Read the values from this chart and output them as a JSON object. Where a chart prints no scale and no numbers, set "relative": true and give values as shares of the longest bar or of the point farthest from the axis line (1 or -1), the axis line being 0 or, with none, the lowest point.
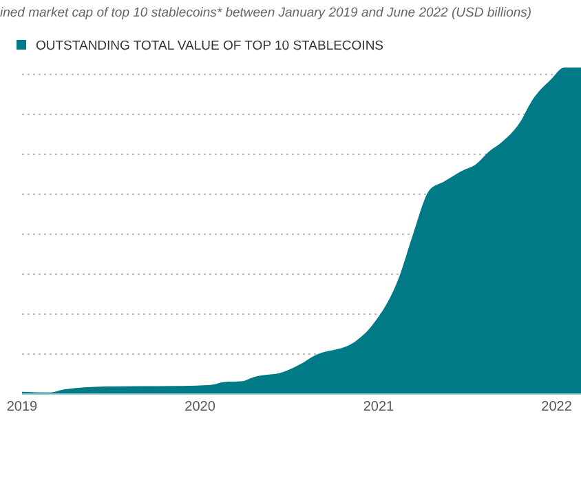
{
  "chart_data": {
    "type": "area",
    "title": "ined market cap of top 10 stablecoins* between January 2019 and June 2022 (USD billions)",
    "x": [
      "2019-01-01",
      "2019-03-01",
      "2019-03-28",
      "2019-06-20",
      "2019-11-25",
      "2020-01-22",
      "2020-02-20",
      "2020-03-25",
      "2020-04-22",
      "2020-06-18",
      "2020-07-30",
      "2020-08-18",
      "2020-11-13",
      "2020-12-18",
      "2021-02-13",
      "2021-03-13",
      "2021-04-16",
      "2021-05-14",
      "2021-06-26",
      "2021-07-18",
      "2021-08-15",
      "2021-09-12",
      "2021-10-16",
      "2021-11-13",
      "2021-12-20",
      "2022-01-17",
      "2022-02-20"
    ],
    "series": [
      {
        "name": "OUTSTANDING TOTAL VALUE OF TOP 10 STABLECOINS",
        "color": "#007a87",
        "values": [
          0.007,
          0.005,
          0.014,
          0.023,
          0.025,
          0.028,
          0.037,
          0.039,
          0.053,
          0.067,
          0.096,
          0.114,
          0.16,
          0.209,
          0.362,
          0.491,
          0.626,
          0.65,
          0.687,
          0.702,
          0.742,
          0.773,
          0.828,
          0.902,
          0.963,
          1,
          1
        ]
      }
    ],
    "relative": true,
    "xlim": [
      "2019-01-01",
      "2022-02-20"
    ],
    "xticks": [
      {
        "value": "2019-01-01",
        "label": "2019"
      },
      {
        "value": "2020-01-01",
        "label": "2020"
      },
      {
        "value": "2021-01-01",
        "label": "2021"
      },
      {
        "value": "2022-01-01",
        "label": "2022"
      }
    ],
    "grid": "y",
    "legend": "top left"
  }
}
